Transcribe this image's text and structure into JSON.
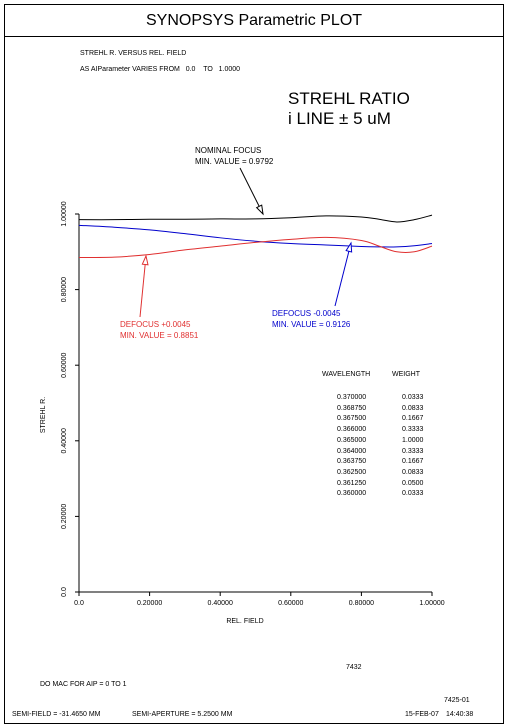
{
  "window_title": "SYNOPSYS Parametric PLOT",
  "header": {
    "line1": "STREHL R. VERSUS REL. FIELD",
    "line2_prefix": "AS AIParameter VARIES FROM",
    "line2_from": "0.0",
    "line2_to_label": "TO",
    "line2_to": "1.0000"
  },
  "plot_title": {
    "line1": "STREHL RATIO",
    "line2": "i LINE ± 5 uM"
  },
  "annotations": {
    "nominal": {
      "label": "NOMINAL FOCUS",
      "min": "MIN. VALUE = 0.9792"
    },
    "defocus_plus": {
      "label": "DEFOCUS +0.0045",
      "min": "MIN. VALUE = 0.8851"
    },
    "defocus_minus": {
      "label": "DEFOCUS -0.0045",
      "min": "MIN. VALUE = 0.9126"
    }
  },
  "wavelength_table": {
    "headers": [
      "WAVELENGTH",
      "WEIGHT"
    ],
    "rows": [
      [
        "0.370000",
        "0.0333"
      ],
      [
        "0.368750",
        "0.0833"
      ],
      [
        "0.367500",
        "0.1667"
      ],
      [
        "0.366000",
        "0.3333"
      ],
      [
        "0.365000",
        "1.0000"
      ],
      [
        "0.364000",
        "0.3333"
      ],
      [
        "0.363750",
        "0.1667"
      ],
      [
        "0.362500",
        "0.0833"
      ],
      [
        "0.361250",
        "0.0500"
      ],
      [
        "0.360000",
        "0.0333"
      ]
    ]
  },
  "footer": {
    "id_number": "7432",
    "macro_note": "DO MAC FOR AIP = 0 TO 1",
    "code": "7425-01",
    "semi_field": "SEMI-FIELD = -31.4650 MM",
    "semi_aperture": "SEMI-APERTURE = 5.2500 MM",
    "date": "15-FEB-07",
    "time": "14:40:38"
  },
  "chart_data": {
    "type": "line",
    "xlabel": "REL. FIELD",
    "ylabel": "STREHL R.",
    "xlim": [
      0.0,
      1.0
    ],
    "ylim": [
      0.0,
      1.0
    ],
    "x_ticks": [
      "0.0",
      "0.20000",
      "0.40000",
      "0.60000",
      "0.80000",
      "1.00000"
    ],
    "y_ticks": [
      "0.0",
      "0.20000",
      "0.40000",
      "0.60000",
      "0.80000",
      "1.00000"
    ],
    "grid": false,
    "series": [
      {
        "name": "NOMINAL FOCUS",
        "color": "#000000",
        "x": [
          0.0,
          0.1,
          0.2,
          0.3,
          0.4,
          0.5,
          0.6,
          0.7,
          0.8,
          0.85,
          0.9,
          0.95,
          1.0
        ],
        "y": [
          0.985,
          0.985,
          0.986,
          0.986,
          0.987,
          0.987,
          0.99,
          0.995,
          0.992,
          0.986,
          0.979,
          0.985,
          0.997
        ]
      },
      {
        "name": "DEFOCUS -0.0045",
        "color": "#0000cc",
        "x": [
          0.0,
          0.1,
          0.2,
          0.3,
          0.4,
          0.5,
          0.6,
          0.7,
          0.8,
          0.85,
          0.9,
          0.95,
          1.0
        ],
        "y": [
          0.97,
          0.965,
          0.958,
          0.948,
          0.937,
          0.928,
          0.922,
          0.918,
          0.914,
          0.913,
          0.913,
          0.916,
          0.922
        ]
      },
      {
        "name": "DEFOCUS +0.0045",
        "color": "#e03030",
        "x": [
          0.0,
          0.1,
          0.2,
          0.3,
          0.4,
          0.5,
          0.6,
          0.7,
          0.8,
          0.85,
          0.9,
          0.95,
          1.0
        ],
        "y": [
          0.885,
          0.886,
          0.893,
          0.905,
          0.915,
          0.925,
          0.933,
          0.938,
          0.93,
          0.915,
          0.9,
          0.9,
          0.915
        ]
      }
    ]
  }
}
